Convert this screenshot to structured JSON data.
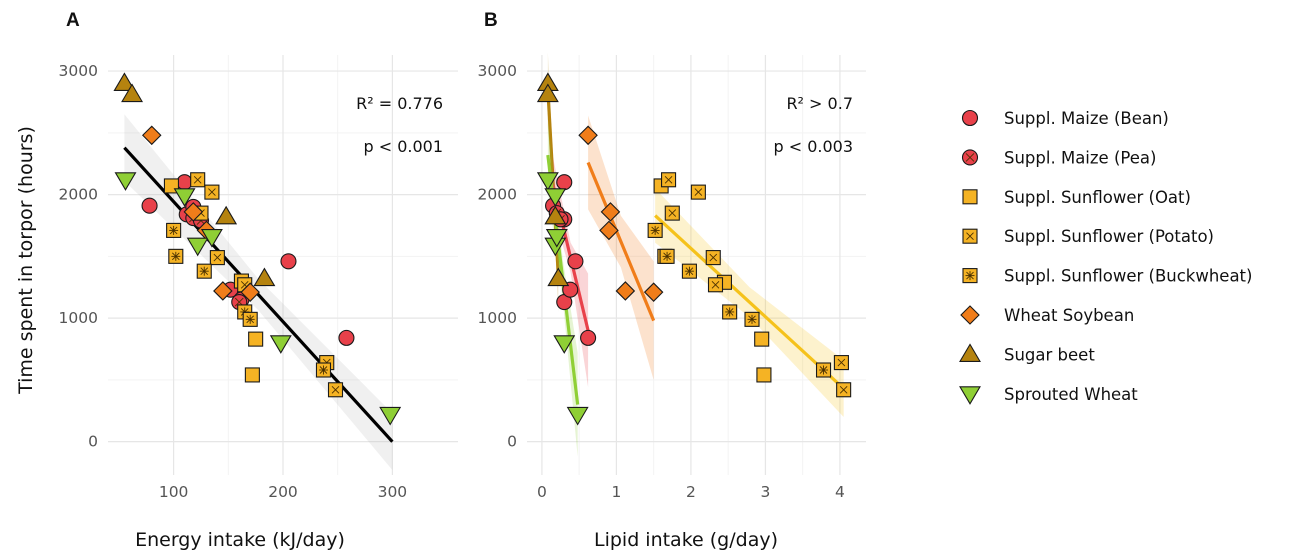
{
  "chart_data": [
    {
      "type": "scatter",
      "panel_label": "A",
      "xlabel": "Energy intake (kJ/day)",
      "ylabel": "Time spent in torpor (hours)",
      "xlim": [
        40,
        360
      ],
      "ylim": [
        -270,
        3130
      ],
      "xticks": [
        100,
        200,
        300
      ],
      "yticks": [
        0,
        1000,
        2000,
        3000
      ],
      "grid": true,
      "annotations": [
        "R² = 0.776",
        "p < 0.001"
      ],
      "series": [
        {
          "name": "Suppl. Maize (Bean)",
          "marker": "circle",
          "color": "#e8414a",
          "points": [
            [
              78,
              1910
            ],
            [
              112,
              1840
            ],
            [
              110,
              2100
            ],
            [
              118,
              1900
            ],
            [
              205,
              1460
            ],
            [
              258,
              840
            ],
            [
              152,
              1230
            ],
            [
              162,
              1150
            ]
          ]
        },
        {
          "name": "Suppl. Maize (Pea)",
          "marker": "circle-x",
          "color": "#e8414a",
          "points": [
            [
              118,
              1810
            ],
            [
              125,
              1790
            ],
            [
              160,
              1130
            ]
          ]
        },
        {
          "name": "Suppl. Sunflower (Oat)",
          "marker": "square",
          "color": "#f5b324",
          "points": [
            [
              98,
              2070
            ],
            [
              162,
              1300
            ],
            [
              175,
              830
            ],
            [
              172,
              540
            ]
          ]
        },
        {
          "name": "Suppl. Sunflower (Potato)",
          "marker": "square-x",
          "color": "#f5b324",
          "points": [
            [
              122,
              2120
            ],
            [
              135,
              2020
            ],
            [
              125,
              1850
            ],
            [
              140,
              1490
            ],
            [
              165,
              1270
            ],
            [
              240,
              640
            ],
            [
              248,
              420
            ]
          ]
        },
        {
          "name": "Suppl. Sunflower (Buckwheat)",
          "marker": "square-star",
          "color": "#f5b324",
          "points": [
            [
              100,
              1710
            ],
            [
              102,
              1500
            ],
            [
              128,
              1380
            ],
            [
              165,
              1050
            ],
            [
              170,
              990
            ],
            [
              237,
              580
            ]
          ]
        },
        {
          "name": "Wheat Soybean",
          "marker": "diamond",
          "color": "#f07d1a",
          "points": [
            [
              80,
              2480
            ],
            [
              118,
              1860
            ],
            [
              130,
              1710
            ],
            [
              145,
              1220
            ],
            [
              170,
              1210
            ]
          ]
        },
        {
          "name": "Sugar beet",
          "marker": "triangle-up",
          "color": "#b5830f",
          "points": [
            [
              55,
              2900
            ],
            [
              62,
              2810
            ],
            [
              148,
              1820
            ],
            [
              183,
              1320
            ]
          ]
        },
        {
          "name": "Sprouted Wheat",
          "marker": "triangle-down",
          "color": "#8fcf35",
          "points": [
            [
              56,
              2120
            ],
            [
              110,
              1990
            ],
            [
              122,
              1590
            ],
            [
              135,
              1660
            ],
            [
              198,
              800
            ],
            [
              298,
              220
            ]
          ]
        }
      ],
      "fits": [
        {
          "color": "#000000",
          "band_color": "#bbbbbb",
          "x": [
            55,
            300
          ],
          "y": [
            2380,
            0
          ],
          "band_halfwidth": [
            270,
            230
          ]
        }
      ]
    },
    {
      "type": "scatter",
      "panel_label": "B",
      "xlabel": "Lipid intake (g/day)",
      "ylabel": "",
      "xlim": [
        -0.2,
        4.35
      ],
      "ylim": [
        -270,
        3130
      ],
      "xticks": [
        0,
        1,
        2,
        3,
        4
      ],
      "yticks": [
        0,
        1000,
        2000,
        3000
      ],
      "grid": true,
      "annotations": [
        "R² > 0.7",
        "p < 0.003"
      ],
      "series": [
        {
          "name": "Suppl. Maize (Bean)",
          "marker": "circle",
          "color": "#e8414a",
          "points": [
            [
              0.15,
              1910
            ],
            [
              0.3,
              2100
            ],
            [
              0.3,
              1800
            ],
            [
              0.45,
              1460
            ],
            [
              0.62,
              840
            ],
            [
              0.3,
              1130
            ],
            [
              0.38,
              1230
            ]
          ]
        },
        {
          "name": "Suppl. Maize (Pea)",
          "marker": "circle-x",
          "color": "#e8414a",
          "points": [
            [
              0.2,
              1850
            ],
            [
              0.25,
              1800
            ]
          ]
        },
        {
          "name": "Suppl. Sunflower (Oat)",
          "marker": "square",
          "color": "#f5b324",
          "points": [
            [
              1.6,
              2070
            ],
            [
              1.65,
              1500
            ],
            [
              2.45,
              1290
            ],
            [
              2.95,
              830
            ],
            [
              2.98,
              540
            ]
          ]
        },
        {
          "name": "Suppl. Sunflower (Potato)",
          "marker": "square-x",
          "color": "#f5b324",
          "points": [
            [
              1.7,
              2120
            ],
            [
              2.1,
              2020
            ],
            [
              1.75,
              1850
            ],
            [
              2.3,
              1490
            ],
            [
              2.33,
              1270
            ],
            [
              4.02,
              640
            ],
            [
              4.05,
              420
            ]
          ]
        },
        {
          "name": "Suppl. Sunflower (Buckwheat)",
          "marker": "square-star",
          "color": "#f5b324",
          "points": [
            [
              1.52,
              1710
            ],
            [
              1.68,
              1500
            ],
            [
              1.98,
              1380
            ],
            [
              2.52,
              1050
            ],
            [
              2.82,
              990
            ],
            [
              3.78,
              580
            ]
          ]
        },
        {
          "name": "Wheat Soybean",
          "marker": "diamond",
          "color": "#f07d1a",
          "points": [
            [
              0.62,
              2480
            ],
            [
              0.92,
              1860
            ],
            [
              0.9,
              1710
            ],
            [
              1.12,
              1220
            ],
            [
              1.5,
              1210
            ]
          ]
        },
        {
          "name": "Sugar beet",
          "marker": "triangle-up",
          "color": "#b5830f",
          "points": [
            [
              0.08,
              2900
            ],
            [
              0.08,
              2810
            ],
            [
              0.18,
              1820
            ],
            [
              0.22,
              1320
            ]
          ]
        },
        {
          "name": "Sprouted Wheat",
          "marker": "triangle-down",
          "color": "#8fcf35",
          "points": [
            [
              0.08,
              2120
            ],
            [
              0.18,
              1990
            ],
            [
              0.18,
              1590
            ],
            [
              0.2,
              1660
            ],
            [
              0.3,
              800
            ],
            [
              0.48,
              220
            ]
          ]
        }
      ],
      "fits": [
        {
          "color": "#b5830f",
          "band_color": "#b5830f",
          "x": [
            0.08,
            0.22
          ],
          "y": [
            2850,
            1350
          ],
          "band_halfwidth": [
            300,
            300
          ]
        },
        {
          "color": "#e8414a",
          "band_color": "#e8414a",
          "x": [
            0.15,
            0.62
          ],
          "y": [
            2080,
            900
          ],
          "band_halfwidth": [
            220,
            460
          ]
        },
        {
          "color": "#8fcf35",
          "band_color": "#8fcf35",
          "x": [
            0.08,
            0.48
          ],
          "y": [
            2320,
            300
          ],
          "band_halfwidth": [
            300,
            420
          ]
        },
        {
          "color": "#f07d1a",
          "band_color": "#f07d1a",
          "x": [
            0.62,
            1.5
          ],
          "y": [
            2260,
            980
          ],
          "band_halfwidth": [
            380,
            480
          ]
        },
        {
          "color": "#f5c21b",
          "band_color": "#f5c21b",
          "x": [
            1.52,
            4.05
          ],
          "y": [
            1830,
            430
          ],
          "band_halfwidth": [
            220,
            230
          ]
        }
      ]
    }
  ],
  "legend": [
    {
      "label": "Suppl. Maize (Bean)",
      "marker": "circle",
      "color": "#e8414a"
    },
    {
      "label": "Suppl. Maize (Pea)",
      "marker": "circle-x",
      "color": "#e8414a"
    },
    {
      "label": "Suppl. Sunflower (Oat)",
      "marker": "square",
      "color": "#f5b324"
    },
    {
      "label": "Suppl. Sunflower (Potato)",
      "marker": "square-x",
      "color": "#f5b324"
    },
    {
      "label": "Suppl. Sunflower (Buckwheat)",
      "marker": "square-star",
      "color": "#f5b324"
    },
    {
      "label": "Wheat Soybean",
      "marker": "diamond",
      "color": "#f07d1a"
    },
    {
      "label": "Sugar beet",
      "marker": "triangle-up",
      "color": "#b5830f"
    },
    {
      "label": "Sprouted Wheat",
      "marker": "triangle-down",
      "color": "#8fcf35"
    }
  ]
}
